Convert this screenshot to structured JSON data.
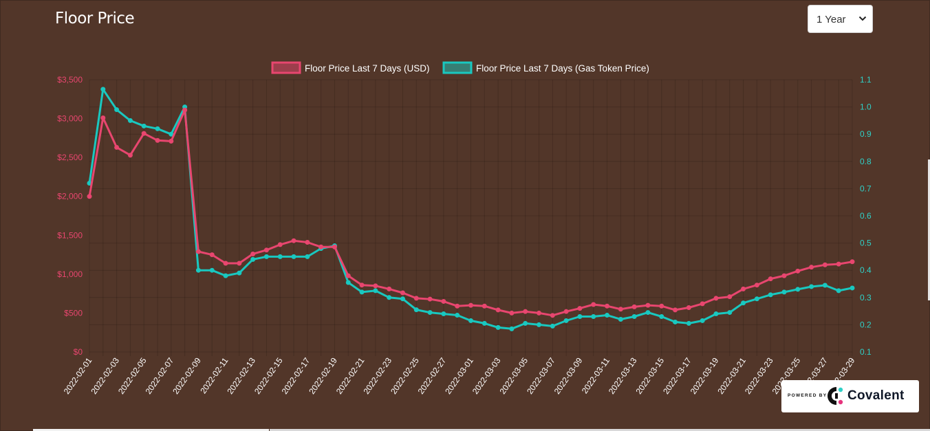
{
  "header": {
    "title": "Floor Price"
  },
  "range_select": {
    "value": "1 Year"
  },
  "badge": {
    "powered_by": "POWERED BY",
    "brand": "Covalent"
  },
  "colors": {
    "usd": "#e8466f",
    "usd_fill": "rgba(232,70,111,0.5)",
    "gas": "#19c8c0",
    "gas_fill": "rgba(25,200,192,0.5)",
    "background": "#523629"
  },
  "chart_data": {
    "type": "line",
    "title": "",
    "legend_position": "top",
    "grid": true,
    "x": [
      "2022-02-01",
      "2022-02-02",
      "2022-02-03",
      "2022-02-04",
      "2022-02-05",
      "2022-02-06",
      "2022-02-07",
      "2022-02-08",
      "2022-02-09",
      "2022-02-10",
      "2022-02-11",
      "2022-02-12",
      "2022-02-13",
      "2022-02-14",
      "2022-02-15",
      "2022-02-16",
      "2022-02-17",
      "2022-02-18",
      "2022-02-19",
      "2022-02-20",
      "2022-02-21",
      "2022-02-22",
      "2022-02-23",
      "2022-02-24",
      "2022-02-25",
      "2022-02-26",
      "2022-02-27",
      "2022-02-28",
      "2022-03-01",
      "2022-03-02",
      "2022-03-03",
      "2022-03-04",
      "2022-03-05",
      "2022-03-06",
      "2022-03-07",
      "2022-03-08",
      "2022-03-09",
      "2022-03-10",
      "2022-03-11",
      "2022-03-12",
      "2022-03-13",
      "2022-03-14",
      "2022-03-15",
      "2022-03-16",
      "2022-03-17",
      "2022-03-18",
      "2022-03-19",
      "2022-03-20",
      "2022-03-21",
      "2022-03-22",
      "2022-03-23",
      "2022-03-24",
      "2022-03-25",
      "2022-03-26",
      "2022-03-27",
      "2022-03-28",
      "2022-03-29"
    ],
    "x_tick_labels": [
      "2022-02-01",
      "2022-02-03",
      "2022-02-05",
      "2022-02-07",
      "2022-02-09",
      "2022-02-11",
      "2022-02-13",
      "2022-02-15",
      "2022-02-17",
      "2022-02-19",
      "2022-02-21",
      "2022-02-23",
      "2022-02-25",
      "2022-02-27",
      "2022-03-01",
      "2022-03-03",
      "2022-03-05",
      "2022-03-07",
      "2022-03-09",
      "2022-03-11",
      "2022-03-13",
      "2022-03-15",
      "2022-03-17",
      "2022-03-19",
      "2022-03-21",
      "2022-03-23",
      "2022-03-25",
      "2022-03-27",
      "2022-03-29"
    ],
    "y_left": {
      "ylim": [
        0,
        3500
      ],
      "ticks": [
        "$0",
        "$500",
        "$1,000",
        "$1,500",
        "$2,000",
        "$2,500",
        "$3,000",
        "$3,500"
      ]
    },
    "y_right": {
      "ylim": [
        0.1,
        1.1
      ],
      "ticks": [
        "0.1",
        "0.2",
        "0.3",
        "0.4",
        "0.5",
        "0.6",
        "0.7",
        "0.8",
        "0.9",
        "1.0",
        "1.1"
      ]
    },
    "series": [
      {
        "name": "Floor Price Last 7 Days (USD)",
        "axis": "left",
        "values": [
          2000,
          3010,
          2630,
          2530,
          2810,
          2720,
          2710,
          3110,
          1290,
          1250,
          1140,
          1140,
          1260,
          1310,
          1380,
          1430,
          1410,
          1350,
          1350,
          980,
          860,
          850,
          810,
          760,
          690,
          680,
          650,
          590,
          600,
          590,
          540,
          500,
          520,
          500,
          470,
          520,
          560,
          610,
          590,
          550,
          580,
          600,
          590,
          540,
          570,
          620,
          690,
          710,
          810,
          860,
          940,
          980,
          1040,
          1090,
          1120,
          1130,
          1160
        ]
      },
      {
        "name": "Floor Price Last 7 Days (Gas Token Price)",
        "axis": "right",
        "values": [
          0.72,
          1.065,
          0.99,
          0.95,
          0.93,
          0.92,
          0.9,
          1.0,
          0.4,
          0.4,
          0.38,
          0.39,
          0.44,
          0.45,
          0.45,
          0.45,
          0.45,
          0.48,
          0.49,
          0.355,
          0.32,
          0.325,
          0.3,
          0.295,
          0.255,
          0.245,
          0.24,
          0.235,
          0.215,
          0.205,
          0.19,
          0.185,
          0.205,
          0.2,
          0.195,
          0.215,
          0.23,
          0.23,
          0.235,
          0.22,
          0.23,
          0.245,
          0.23,
          0.21,
          0.205,
          0.215,
          0.24,
          0.245,
          0.28,
          0.295,
          0.31,
          0.32,
          0.33,
          0.34,
          0.345,
          0.325,
          0.335
        ]
      }
    ]
  }
}
